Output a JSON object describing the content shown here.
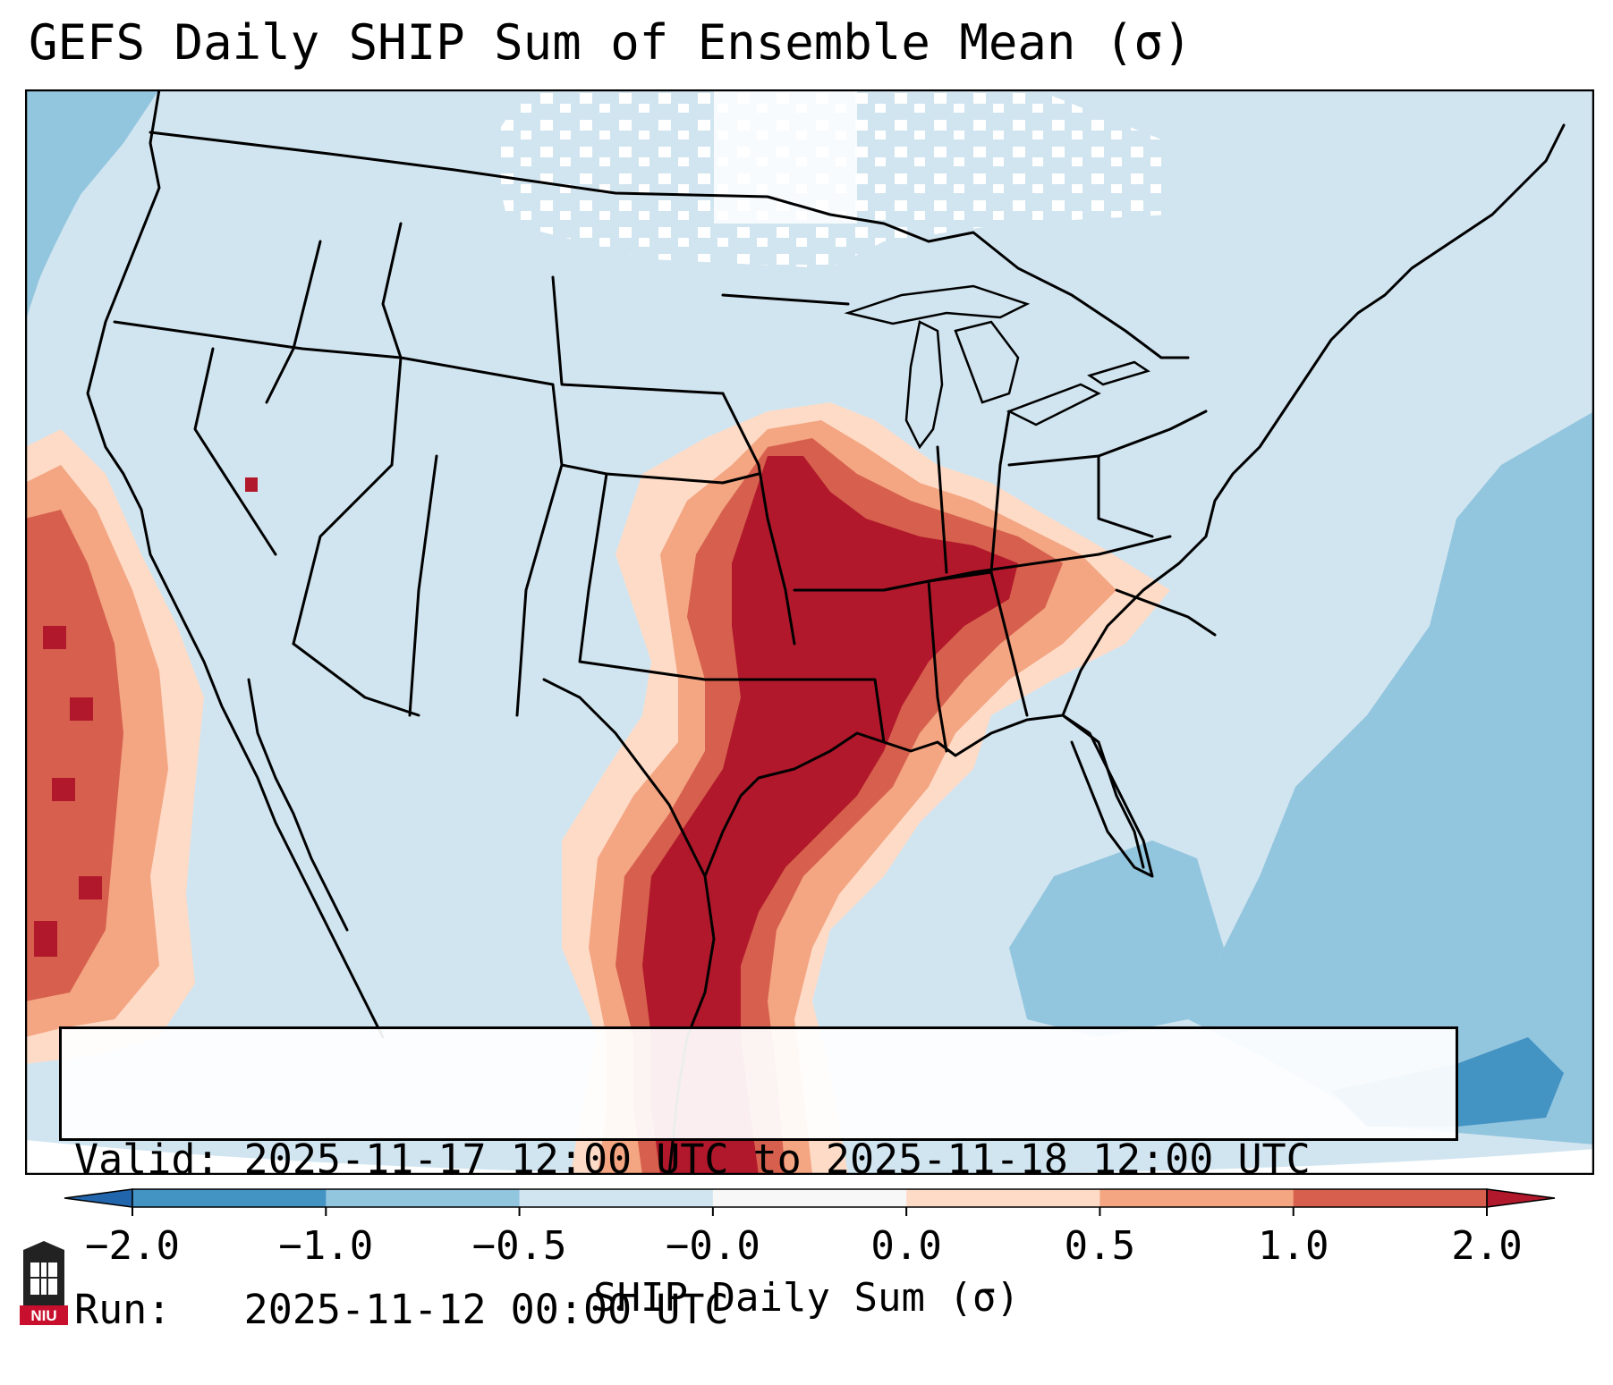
{
  "title": "GEFS Daily SHIP Sum of Ensemble Mean (σ)",
  "info": {
    "valid_label": "Valid:",
    "valid_value": "2025-11-17 12:00 UTC to 2025-11-18 12:00 UTC",
    "run_label": "Run:",
    "run_value": "2025-11-12 00:00 UTC"
  },
  "colorbar": {
    "label": "SHIP Daily Sum (σ)",
    "ticks": [
      "−2.0",
      "−1.0",
      "−0.5",
      "−0.0",
      "0.0",
      "0.5",
      "1.0",
      "2.0"
    ],
    "bins": [
      {
        "color": "#2166ac",
        "range": "< -2.0"
      },
      {
        "color": "#4393c3",
        "range": "-2.0 to -1.0"
      },
      {
        "color": "#92c5de",
        "range": "-1.0 to -0.5"
      },
      {
        "color": "#d1e5f0",
        "range": "-0.5 to -0.0"
      },
      {
        "color": "#f7f7f7",
        "range": "-0.0 to 0.0"
      },
      {
        "color": "#fddbc7",
        "range": "0.0 to 0.5"
      },
      {
        "color": "#f4a582",
        "range": "0.5 to 1.0"
      },
      {
        "color": "#d6604d",
        "range": "1.0 to 2.0"
      },
      {
        "color": "#b2182b",
        "range": "> 2.0"
      }
    ]
  },
  "logo": {
    "text": "NIU",
    "color": "#c8102e"
  }
}
